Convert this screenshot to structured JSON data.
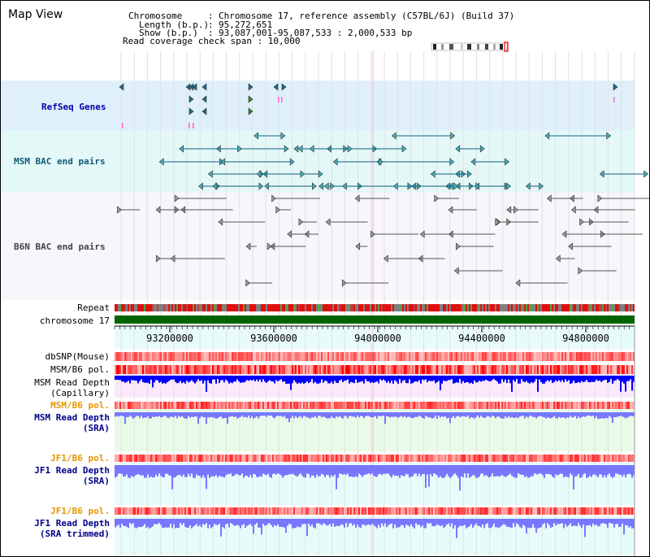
{
  "panel": {
    "title": "Map View"
  },
  "info": {
    "chromosome_key": "Chromosome",
    "chromosome_val": "Chromosome 17, reference assembly (C57BL/6J) (Build 37)",
    "length_key": "Length (b.p.)",
    "length_val": "95,272,651",
    "show_key": "Show (b.p.)",
    "show_val": "93,087,001-95,087,533 : 2,000,533 bp",
    "coverage_line": "Read coverage check span : 10,000"
  },
  "tracks": {
    "refseq": "RefSeq Genes",
    "msm_bac": "MSM BAC end pairs",
    "b6n_bac": "B6N BAC end pairs",
    "repeat": "Repeat",
    "chromosome": "chromosome 17",
    "dbsnp": "dbSNP(Mouse)",
    "msm_b6_pol": "MSM/B6 pol.",
    "msm_read_depth_cap_1": "MSM Read Depth",
    "msm_read_depth_cap_2": "(Capillary)",
    "msm_b6_pol_sra": "MSM/B6 pol.",
    "msm_read_depth_sra_1": "MSM Read Depth",
    "msm_read_depth_sra_2": "(SRA)",
    "jf1_b6_pol": "JF1/B6 pol.",
    "jf1_read_depth_1": "JF1 Read Depth",
    "jf1_read_depth_2": "(SRA)",
    "jf1_b6_pol_trim": "JF1/B6 pol.",
    "jf1_read_depth_trim_1": "JF1 Read Depth",
    "jf1_read_depth_trim_2": "(SRA trimmed)"
  },
  "axis": {
    "ticks": [
      "93200000",
      "93600000",
      "94000000",
      "94400000",
      "94800000"
    ]
  },
  "colors": {
    "refseq_bg": "#dff0fa",
    "msm_bg": "#e4f8f8",
    "b6n_bg": "#f6f6fb",
    "chromosome_bar": "#006400",
    "pol_red": "#ff0000",
    "depth_blue": "#0000ff",
    "depth_light": "#7777ff"
  }
}
